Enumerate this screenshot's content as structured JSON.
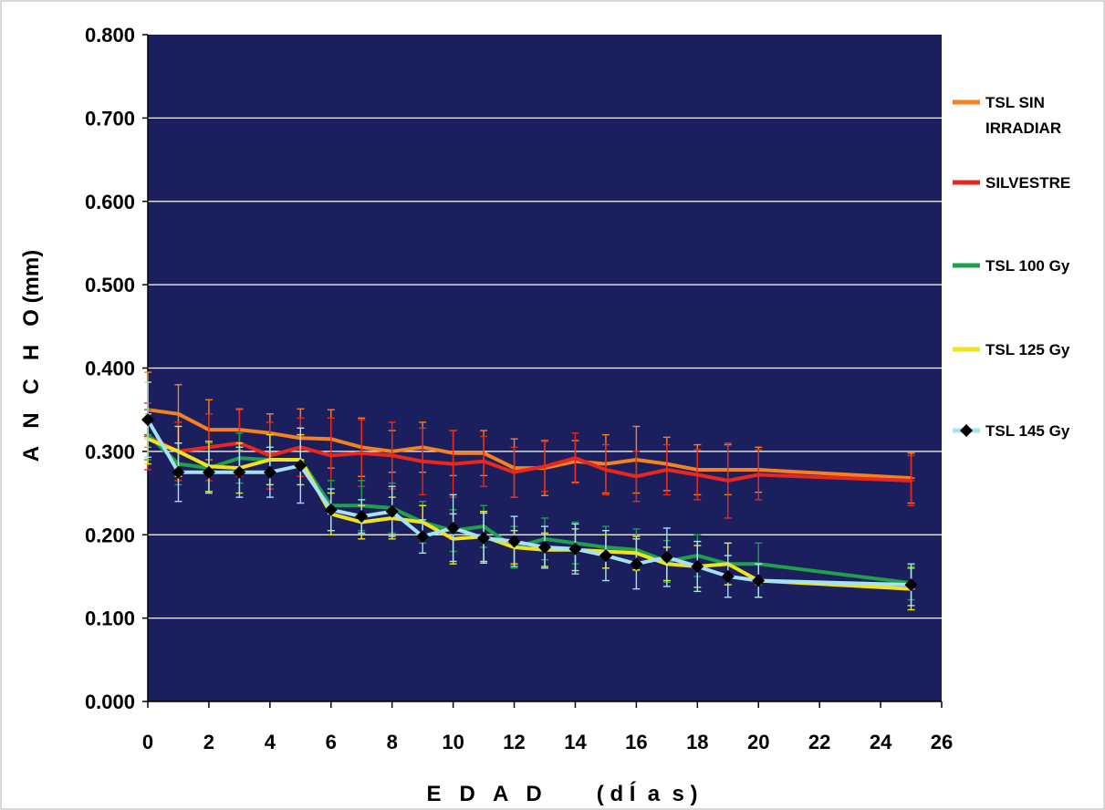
{
  "chart_data": {
    "type": "line",
    "xlabel": "E   D   A   D         ( d Í  a  s )",
    "ylabel": "A   N   C   H   O (mm)",
    "xlim": [
      0,
      26
    ],
    "ylim": [
      0,
      0.8
    ],
    "xticks": [
      0,
      2,
      4,
      6,
      8,
      10,
      12,
      14,
      16,
      18,
      20,
      22,
      24,
      26
    ],
    "xtick_labels": [
      "0",
      "2",
      "4",
      "6",
      "8",
      "10",
      "12",
      "14",
      "16",
      "18",
      "20",
      "22",
      "24",
      "26"
    ],
    "yticks": [
      0,
      0.1,
      0.2,
      0.3,
      0.4,
      0.5,
      0.6,
      0.7,
      0.8
    ],
    "ytick_labels": [
      "0.000",
      "0.100",
      "0.200",
      "0.300",
      "0.400",
      "0.500",
      "0.600",
      "0.700",
      "0.800"
    ],
    "grid": "horizontal",
    "legend": "right",
    "background": "#1b1f5e",
    "gridline_color": "#ffffff",
    "x": [
      0,
      1,
      2,
      3,
      4,
      5,
      6,
      7,
      8,
      9,
      10,
      11,
      12,
      13,
      14,
      15,
      16,
      17,
      18,
      19,
      20,
      25
    ],
    "series": [
      {
        "name_lines": [
          "TSL SIN",
          "IRRADIAR"
        ],
        "color": "#f58220",
        "values": [
          0.35,
          0.345,
          0.326,
          0.326,
          0.322,
          0.316,
          0.315,
          0.305,
          0.3,
          0.305,
          0.298,
          0.298,
          0.28,
          0.28,
          0.288,
          0.285,
          0.29,
          0.285,
          0.278,
          0.278,
          0.278,
          0.268
        ],
        "errors": [
          0.045,
          0.035,
          0.036,
          0.025,
          0.023,
          0.035,
          0.035,
          0.035,
          0.025,
          0.03,
          0.027,
          0.027,
          0.035,
          0.033,
          0.025,
          0.035,
          0.04,
          0.032,
          0.03,
          0.03,
          0.027,
          0.03
        ]
      },
      {
        "name_lines": [
          "SILVESTRE"
        ],
        "color": "#e8281e",
        "values": [
          0.318,
          0.3,
          0.305,
          0.31,
          0.295,
          0.305,
          0.295,
          0.298,
          0.295,
          0.288,
          0.285,
          0.288,
          0.275,
          0.282,
          0.292,
          0.278,
          0.27,
          0.278,
          0.272,
          0.265,
          0.272,
          0.265
        ],
        "errors": [
          0.04,
          0.035,
          0.04,
          0.04,
          0.04,
          0.035,
          0.045,
          0.04,
          0.04,
          0.04,
          0.04,
          0.03,
          0.03,
          0.03,
          0.03,
          0.03,
          0.03,
          0.03,
          0.03,
          0.045,
          0.03,
          0.03
        ]
      },
      {
        "name_lines": [
          "TSL 100 Gy"
        ],
        "color": "#1fa04b",
        "values": [
          0.32,
          0.285,
          0.28,
          0.292,
          0.29,
          0.29,
          0.235,
          0.235,
          0.232,
          0.215,
          0.205,
          0.21,
          0.185,
          0.195,
          0.19,
          0.185,
          0.182,
          0.168,
          0.175,
          0.165,
          0.165,
          0.142
        ],
        "errors": [
          0.03,
          0.025,
          0.03,
          0.03,
          0.03,
          0.03,
          0.03,
          0.03,
          0.03,
          0.025,
          0.025,
          0.025,
          0.025,
          0.025,
          0.025,
          0.025,
          0.025,
          0.025,
          0.025,
          0.025,
          0.025,
          0.02
        ]
      },
      {
        "name_lines": [
          "TSL 125 Gy"
        ],
        "color": "#f0e21c",
        "values": [
          0.315,
          0.3,
          0.282,
          0.28,
          0.29,
          0.29,
          0.225,
          0.215,
          0.22,
          0.215,
          0.195,
          0.198,
          0.185,
          0.182,
          0.182,
          0.18,
          0.178,
          0.165,
          0.162,
          0.165,
          0.145,
          0.135
        ],
        "errors": [
          0.03,
          0.03,
          0.03,
          0.03,
          0.03,
          0.03,
          0.025,
          0.02,
          0.025,
          0.02,
          0.03,
          0.03,
          0.02,
          0.02,
          0.025,
          0.02,
          0.02,
          0.02,
          0.025,
          0.025,
          0.02,
          0.025
        ]
      },
      {
        "name_lines": [
          "TSL 145 Gy"
        ],
        "color": "#a6e1f4",
        "marker_color": "#000000",
        "values": [
          0.338,
          0.275,
          0.275,
          0.275,
          0.275,
          0.283,
          0.23,
          0.222,
          0.228,
          0.198,
          0.208,
          0.196,
          0.192,
          0.185,
          0.183,
          0.175,
          0.165,
          0.173,
          0.162,
          0.15,
          0.145,
          0.14
        ],
        "errors": [
          0.045,
          0.035,
          0.025,
          0.03,
          0.03,
          0.045,
          0.025,
          0.02,
          0.03,
          0.02,
          0.04,
          0.03,
          0.03,
          0.025,
          0.03,
          0.03,
          0.03,
          0.035,
          0.03,
          0.025,
          0.02,
          0.025
        ]
      }
    ]
  }
}
